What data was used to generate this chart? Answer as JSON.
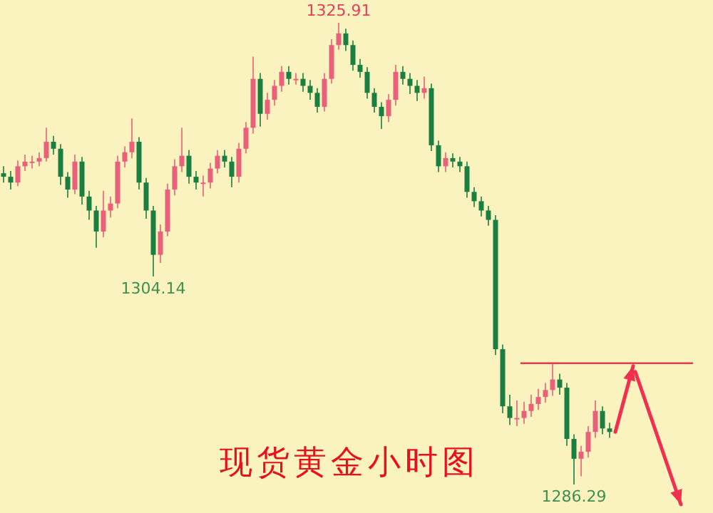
{
  "chart_data": {
    "type": "candlestick",
    "categories": [
      null,
      null,
      null,
      null,
      null,
      null,
      null,
      null,
      null,
      null,
      null,
      null,
      null,
      null,
      null,
      null,
      null,
      null,
      null,
      null,
      null,
      null,
      null,
      null,
      null,
      null,
      null,
      null,
      null,
      null,
      null,
      null,
      null,
      null,
      null,
      null,
      null,
      null,
      null,
      null,
      null,
      null,
      null,
      null,
      null,
      null,
      null,
      null,
      null,
      null,
      null,
      null,
      null,
      null,
      null,
      null,
      null,
      null,
      null,
      null,
      null,
      null,
      null,
      null,
      null,
      null,
      null,
      null,
      null,
      null,
      null,
      null,
      null,
      null,
      null,
      null,
      null,
      null,
      null,
      null,
      null,
      null,
      null,
      null,
      null,
      null
    ],
    "ohlc": [
      [
        1313.0,
        1313.6,
        1312.2,
        1312.7
      ],
      [
        1312.7,
        1313.2,
        1311.6,
        1312.2
      ],
      [
        1312.2,
        1314.1,
        1311.9,
        1313.6
      ],
      [
        1313.6,
        1314.6,
        1313.2,
        1314.0
      ],
      [
        1314.0,
        1314.5,
        1313.4,
        1314.0
      ],
      [
        1314.0,
        1314.8,
        1313.6,
        1314.3
      ],
      [
        1314.3,
        1316.9,
        1314.0,
        1315.7
      ],
      [
        1315.7,
        1316.2,
        1314.6,
        1315.1
      ],
      [
        1315.1,
        1315.5,
        1312.0,
        1312.7
      ],
      [
        1312.7,
        1313.1,
        1310.9,
        1311.6
      ],
      [
        1311.6,
        1314.6,
        1311.2,
        1314.0
      ],
      [
        1314.0,
        1314.4,
        1310.3,
        1311.0
      ],
      [
        1311.0,
        1311.5,
        1309.0,
        1309.8
      ],
      [
        1309.8,
        1310.2,
        1306.6,
        1308.0
      ],
      [
        1308.0,
        1311.5,
        1307.5,
        1309.8
      ],
      [
        1309.8,
        1311.0,
        1309.2,
        1310.4
      ],
      [
        1310.4,
        1314.5,
        1310.0,
        1314.0
      ],
      [
        1314.0,
        1315.3,
        1313.5,
        1314.8
      ],
      [
        1314.8,
        1317.7,
        1314.3,
        1315.7
      ],
      [
        1315.7,
        1316.1,
        1311.6,
        1312.2
      ],
      [
        1312.2,
        1312.6,
        1309.1,
        1309.8
      ],
      [
        1309.8,
        1310.2,
        1304.14,
        1306.0
      ],
      [
        1306.0,
        1308.6,
        1305.3,
        1308.0
      ],
      [
        1308.0,
        1312.1,
        1307.6,
        1311.6
      ],
      [
        1311.6,
        1314.2,
        1311.1,
        1313.6
      ],
      [
        1313.6,
        1316.9,
        1313.1,
        1314.5
      ],
      [
        1314.5,
        1315.0,
        1312.1,
        1312.7
      ],
      [
        1312.7,
        1313.2,
        1311.6,
        1312.2
      ],
      [
        1312.2,
        1312.8,
        1311.0,
        1312.2
      ],
      [
        1312.2,
        1313.9,
        1311.7,
        1313.4
      ],
      [
        1313.4,
        1315.0,
        1313.0,
        1314.5
      ],
      [
        1314.5,
        1315.0,
        1313.5,
        1314.0
      ],
      [
        1314.0,
        1314.4,
        1311.8,
        1312.7
      ],
      [
        1312.7,
        1315.6,
        1312.2,
        1315.1
      ],
      [
        1315.1,
        1317.4,
        1314.7,
        1316.9
      ],
      [
        1316.9,
        1323.0,
        1316.4,
        1321.1
      ],
      [
        1321.1,
        1321.6,
        1317.0,
        1318.1
      ],
      [
        1318.1,
        1319.9,
        1317.6,
        1319.3
      ],
      [
        1319.3,
        1321.0,
        1318.8,
        1320.5
      ],
      [
        1320.5,
        1322.2,
        1320.0,
        1321.7
      ],
      [
        1321.7,
        1322.2,
        1320.6,
        1321.1
      ],
      [
        1321.1,
        1321.6,
        1320.6,
        1321.1
      ],
      [
        1321.1,
        1321.6,
        1320.0,
        1320.5
      ],
      [
        1320.5,
        1321.0,
        1319.3,
        1319.9
      ],
      [
        1319.9,
        1320.3,
        1318.2,
        1318.7
      ],
      [
        1318.7,
        1321.6,
        1318.3,
        1321.1
      ],
      [
        1321.1,
        1324.5,
        1320.7,
        1324.0
      ],
      [
        1324.0,
        1325.91,
        1323.6,
        1325.0
      ],
      [
        1325.0,
        1325.4,
        1323.5,
        1324.0
      ],
      [
        1324.0,
        1324.4,
        1321.8,
        1322.3
      ],
      [
        1322.3,
        1322.8,
        1321.2,
        1321.7
      ],
      [
        1321.7,
        1322.1,
        1319.4,
        1319.9
      ],
      [
        1319.9,
        1320.3,
        1318.2,
        1318.7
      ],
      [
        1318.7,
        1319.1,
        1316.8,
        1317.9
      ],
      [
        1317.9,
        1319.8,
        1317.4,
        1319.3
      ],
      [
        1319.3,
        1322.3,
        1318.8,
        1321.7
      ],
      [
        1321.7,
        1322.2,
        1320.6,
        1321.1
      ],
      [
        1321.1,
        1321.6,
        1319.8,
        1320.5
      ],
      [
        1320.5,
        1321.0,
        1319.2,
        1319.9
      ],
      [
        1319.9,
        1321.3,
        1319.4,
        1320.3
      ],
      [
        1320.3,
        1320.7,
        1314.9,
        1315.4
      ],
      [
        1315.4,
        1315.8,
        1313.1,
        1313.6
      ],
      [
        1313.6,
        1314.8,
        1313.1,
        1314.3
      ],
      [
        1314.3,
        1314.7,
        1313.5,
        1314.0
      ],
      [
        1314.0,
        1314.4,
        1313.1,
        1313.6
      ],
      [
        1313.6,
        1314.0,
        1310.9,
        1311.4
      ],
      [
        1311.4,
        1311.8,
        1310.1,
        1310.6
      ],
      [
        1310.6,
        1311.0,
        1309.3,
        1309.8
      ],
      [
        1309.8,
        1310.2,
        1308.5,
        1309.0
      ],
      [
        1309.0,
        1309.4,
        1297.4,
        1297.9
      ],
      [
        1297.9,
        1298.3,
        1292.4,
        1293.0
      ],
      [
        1293.0,
        1294.0,
        1291.4,
        1292.0
      ],
      [
        1292.0,
        1293.5,
        1291.3,
        1292.0
      ],
      [
        1292.0,
        1293.4,
        1291.5,
        1292.6
      ],
      [
        1292.6,
        1294.0,
        1292.1,
        1293.2
      ],
      [
        1293.2,
        1294.5,
        1292.7,
        1293.8
      ],
      [
        1293.8,
        1295.0,
        1293.3,
        1294.4
      ],
      [
        1294.4,
        1296.7,
        1293.9,
        1295.3
      ],
      [
        1295.3,
        1295.8,
        1294.0,
        1294.6
      ],
      [
        1294.6,
        1295.0,
        1289.6,
        1290.2
      ],
      [
        1290.2,
        1290.6,
        1286.29,
        1288.5
      ],
      [
        1288.5,
        1289.6,
        1287.0,
        1289.1
      ],
      [
        1289.1,
        1291.3,
        1288.6,
        1290.8
      ],
      [
        1290.8,
        1293.5,
        1290.3,
        1292.6
      ],
      [
        1292.6,
        1293.0,
        1290.6,
        1291.1
      ],
      [
        1291.1,
        1291.6,
        1290.3,
        1290.8
      ]
    ],
    "colors": [
      "#1a7f40",
      "#1a7f40",
      "#e8607a",
      "#e8607a",
      "#e8607a",
      "#e8607a",
      "#e8607a",
      "#1a7f40",
      "#1a7f40",
      "#1a7f40",
      "#e8607a",
      "#1a7f40",
      "#1a7f40",
      "#1a7f40",
      "#e8607a",
      "#e8607a",
      "#e8607a",
      "#e8607a",
      "#e8607a",
      "#1a7f40",
      "#1a7f40",
      "#1a7f40",
      "#e8607a",
      "#e8607a",
      "#e8607a",
      "#e8607a",
      "#1a7f40",
      "#1a7f40",
      "#e8607a",
      "#e8607a",
      "#e8607a",
      "#1a7f40",
      "#1a7f40",
      "#e8607a",
      "#e8607a",
      "#e8607a",
      "#1a7f40",
      "#e8607a",
      "#e8607a",
      "#e8607a",
      "#1a7f40",
      "#e8607a",
      "#1a7f40",
      "#1a7f40",
      "#1a7f40",
      "#e8607a",
      "#e8607a",
      "#e8607a",
      "#1a7f40",
      "#1a7f40",
      "#1a7f40",
      "#1a7f40",
      "#1a7f40",
      "#1a7f40",
      "#e8607a",
      "#e8607a",
      "#1a7f40",
      "#1a7f40",
      "#1a7f40",
      "#e8607a",
      "#1a7f40",
      "#1a7f40",
      "#e8607a",
      "#1a7f40",
      "#1a7f40",
      "#1a7f40",
      "#1a7f40",
      "#1a7f40",
      "#1a7f40",
      "#1a7f40",
      "#1a7f40",
      "#1a7f40",
      "#e8607a",
      "#e8607a",
      "#e8607a",
      "#e8607a",
      "#e8607a",
      "#e8607a",
      "#1a7f40",
      "#1a7f40",
      "#1a7f40",
      "#e8607a",
      "#e8607a",
      "#e8607a",
      "#1a7f40",
      "#1a7f40"
    ],
    "ref_lines": [
      {
        "axis": "y",
        "value": 1296.7,
        "color": "#e8384f"
      }
    ],
    "annotations": [
      {
        "text": "1325.91",
        "y": 1325.91
      },
      {
        "text": "1304.14",
        "y": 1304.14
      },
      {
        "text": "1286.29",
        "y": 1286.29
      },
      "现货黄金小时图"
    ]
  }
}
